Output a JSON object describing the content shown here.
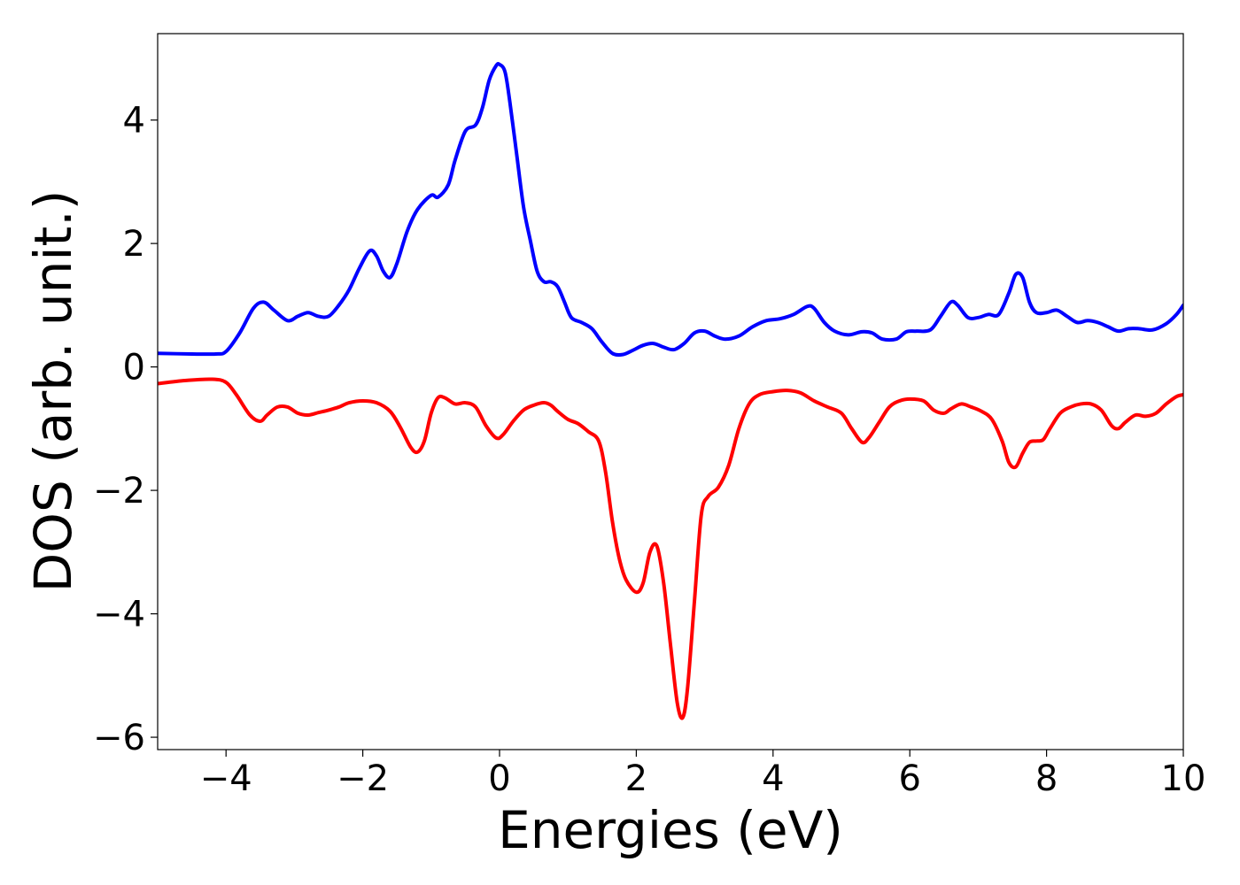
{
  "chart_data": {
    "type": "line",
    "title": "",
    "xlabel": "Energies (eV)",
    "ylabel": "DOS (arb. unit.)",
    "xlim": [
      -5,
      10
    ],
    "ylim": [
      -6.2,
      5.4
    ],
    "xticks": [
      -4,
      -2,
      0,
      2,
      4,
      6,
      8,
      10
    ],
    "yticks": [
      -6,
      -4,
      -2,
      0,
      2,
      4
    ],
    "xtick_labels": [
      "−4",
      "−2",
      "0",
      "2",
      "4",
      "6",
      "8",
      "10"
    ],
    "ytick_labels": [
      "−6",
      "−4",
      "−2",
      "0",
      "2",
      "4"
    ],
    "grid": false,
    "legend": "none",
    "series": [
      {
        "color": "#0000ff",
        "x": [
          -5.0,
          -4.5,
          -4.15,
          -4.0,
          -3.8,
          -3.6,
          -3.45,
          -3.3,
          -3.1,
          -2.95,
          -2.8,
          -2.65,
          -2.5,
          -2.35,
          -2.2,
          -2.05,
          -1.9,
          -1.8,
          -1.7,
          -1.6,
          -1.5,
          -1.35,
          -1.2,
          -1.0,
          -0.9,
          -0.75,
          -0.65,
          -0.5,
          -0.35,
          -0.25,
          -0.15,
          -0.05,
          0.0,
          0.08,
          0.15,
          0.25,
          0.35,
          0.45,
          0.55,
          0.65,
          0.75,
          0.85,
          0.95,
          1.05,
          1.2,
          1.35,
          1.5,
          1.65,
          1.8,
          1.95,
          2.1,
          2.25,
          2.4,
          2.55,
          2.7,
          2.85,
          3.0,
          3.15,
          3.3,
          3.5,
          3.7,
          3.9,
          4.1,
          4.3,
          4.5,
          4.6,
          4.75,
          4.9,
          5.1,
          5.3,
          5.45,
          5.6,
          5.8,
          5.95,
          6.1,
          6.3,
          6.45,
          6.6,
          6.7,
          6.85,
          7.0,
          7.15,
          7.3,
          7.45,
          7.55,
          7.65,
          7.75,
          7.85,
          8.0,
          8.15,
          8.3,
          8.45,
          8.6,
          8.75,
          8.9,
          9.05,
          9.2,
          9.35,
          9.55,
          9.75,
          9.9,
          10.0
        ],
        "y": [
          0.22,
          0.21,
          0.21,
          0.25,
          0.55,
          0.95,
          1.05,
          0.92,
          0.75,
          0.82,
          0.88,
          0.82,
          0.82,
          1.0,
          1.25,
          1.6,
          1.88,
          1.8,
          1.55,
          1.45,
          1.68,
          2.2,
          2.55,
          2.78,
          2.75,
          2.95,
          3.35,
          3.82,
          3.92,
          4.2,
          4.65,
          4.88,
          4.9,
          4.78,
          4.3,
          3.45,
          2.6,
          2.05,
          1.55,
          1.38,
          1.38,
          1.3,
          1.05,
          0.8,
          0.72,
          0.62,
          0.4,
          0.22,
          0.2,
          0.27,
          0.35,
          0.38,
          0.32,
          0.28,
          0.38,
          0.55,
          0.58,
          0.5,
          0.45,
          0.5,
          0.65,
          0.75,
          0.78,
          0.85,
          0.98,
          0.95,
          0.72,
          0.58,
          0.52,
          0.57,
          0.55,
          0.45,
          0.45,
          0.57,
          0.58,
          0.6,
          0.82,
          1.05,
          1.0,
          0.8,
          0.8,
          0.85,
          0.85,
          1.2,
          1.5,
          1.45,
          1.05,
          0.88,
          0.88,
          0.92,
          0.82,
          0.72,
          0.75,
          0.72,
          0.65,
          0.58,
          0.62,
          0.62,
          0.6,
          0.7,
          0.85,
          1.0
        ]
      },
      {
        "color": "#ff0000",
        "x": [
          -5.0,
          -4.6,
          -4.2,
          -4.0,
          -3.85,
          -3.65,
          -3.5,
          -3.4,
          -3.25,
          -3.1,
          -2.95,
          -2.8,
          -2.65,
          -2.5,
          -2.35,
          -2.2,
          -2.0,
          -1.8,
          -1.6,
          -1.45,
          -1.3,
          -1.2,
          -1.1,
          -1.0,
          -0.9,
          -0.8,
          -0.65,
          -0.5,
          -0.35,
          -0.2,
          -0.05,
          0.05,
          0.2,
          0.35,
          0.5,
          0.65,
          0.75,
          0.85,
          1.0,
          1.15,
          1.3,
          1.45,
          1.55,
          1.65,
          1.75,
          1.85,
          2.0,
          2.1,
          2.2,
          2.3,
          2.4,
          2.5,
          2.6,
          2.68,
          2.75,
          2.85,
          2.95,
          3.05,
          3.2,
          3.35,
          3.5,
          3.65,
          3.8,
          4.0,
          4.2,
          4.4,
          4.6,
          4.8,
          5.0,
          5.15,
          5.3,
          5.4,
          5.55,
          5.7,
          5.85,
          6.0,
          6.2,
          6.35,
          6.5,
          6.6,
          6.75,
          6.9,
          7.05,
          7.2,
          7.35,
          7.45,
          7.55,
          7.65,
          7.75,
          7.85,
          7.95,
          8.05,
          8.2,
          8.35,
          8.5,
          8.65,
          8.8,
          8.95,
          9.05,
          9.15,
          9.3,
          9.45,
          9.6,
          9.75,
          9.9,
          10.0
        ],
        "y": [
          -0.27,
          -0.22,
          -0.2,
          -0.25,
          -0.45,
          -0.78,
          -0.88,
          -0.78,
          -0.65,
          -0.65,
          -0.75,
          -0.78,
          -0.74,
          -0.7,
          -0.65,
          -0.58,
          -0.55,
          -0.58,
          -0.72,
          -0.98,
          -1.3,
          -1.38,
          -1.2,
          -0.75,
          -0.5,
          -0.5,
          -0.6,
          -0.58,
          -0.65,
          -0.95,
          -1.15,
          -1.1,
          -0.88,
          -0.7,
          -0.62,
          -0.58,
          -0.62,
          -0.72,
          -0.85,
          -0.92,
          -1.05,
          -1.2,
          -1.7,
          -2.5,
          -3.1,
          -3.45,
          -3.65,
          -3.5,
          -3.0,
          -2.9,
          -3.5,
          -4.5,
          -5.45,
          -5.68,
          -5.2,
          -3.8,
          -2.4,
          -2.1,
          -1.95,
          -1.6,
          -1.0,
          -0.6,
          -0.45,
          -0.4,
          -0.38,
          -0.42,
          -0.55,
          -0.65,
          -0.75,
          -1.0,
          -1.22,
          -1.15,
          -0.9,
          -0.65,
          -0.55,
          -0.52,
          -0.55,
          -0.7,
          -0.75,
          -0.68,
          -0.6,
          -0.65,
          -0.72,
          -0.85,
          -1.2,
          -1.55,
          -1.62,
          -1.4,
          -1.22,
          -1.2,
          -1.18,
          -1.0,
          -0.75,
          -0.65,
          -0.6,
          -0.6,
          -0.7,
          -0.95,
          -1.0,
          -0.9,
          -0.78,
          -0.8,
          -0.75,
          -0.6,
          -0.48,
          -0.45
        ]
      }
    ]
  }
}
